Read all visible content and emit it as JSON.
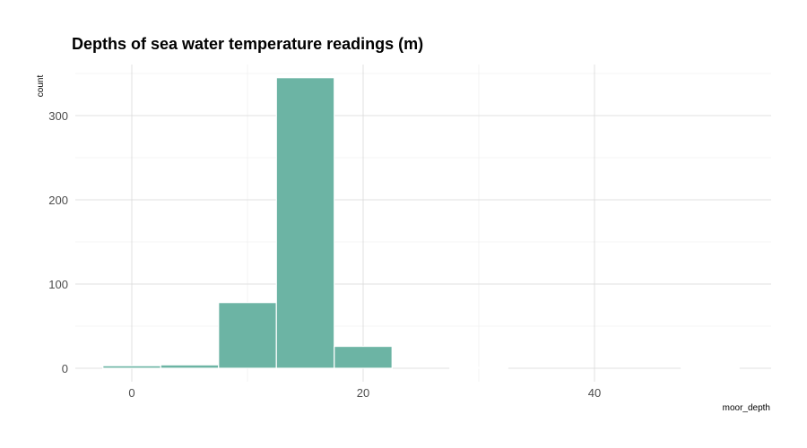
{
  "chart_data": {
    "type": "bar",
    "title": "Depths of sea water temperature readings (m)",
    "xlabel": "moor_depth",
    "ylabel": "count",
    "xlim": [
      -5,
      55
    ],
    "ylim": [
      0,
      350
    ],
    "x_ticks": [
      0,
      20,
      40
    ],
    "y_ticks": [
      0,
      100,
      200,
      300
    ],
    "bin_width": 5,
    "bins": [
      {
        "x0": -2.5,
        "x1": 2.5,
        "count": 3
      },
      {
        "x0": 2.5,
        "x1": 7.5,
        "count": 4
      },
      {
        "x0": 7.5,
        "x1": 12.5,
        "count": 78
      },
      {
        "x0": 12.5,
        "x1": 17.5,
        "count": 345
      },
      {
        "x0": 17.5,
        "x1": 22.5,
        "count": 26
      },
      {
        "x0": 22.5,
        "x1": 27.5,
        "count": 0
      },
      {
        "x0": 27.5,
        "x1": 32.5,
        "count": 1
      },
      {
        "x0": 32.5,
        "x1": 37.5,
        "count": 0
      },
      {
        "x0": 37.5,
        "x1": 42.5,
        "count": 0
      },
      {
        "x0": 42.5,
        "x1": 47.5,
        "count": 0
      },
      {
        "x0": 47.5,
        "x1": 52.5,
        "count": 1
      }
    ],
    "bar_color": "#69b3a2",
    "grid": true
  }
}
